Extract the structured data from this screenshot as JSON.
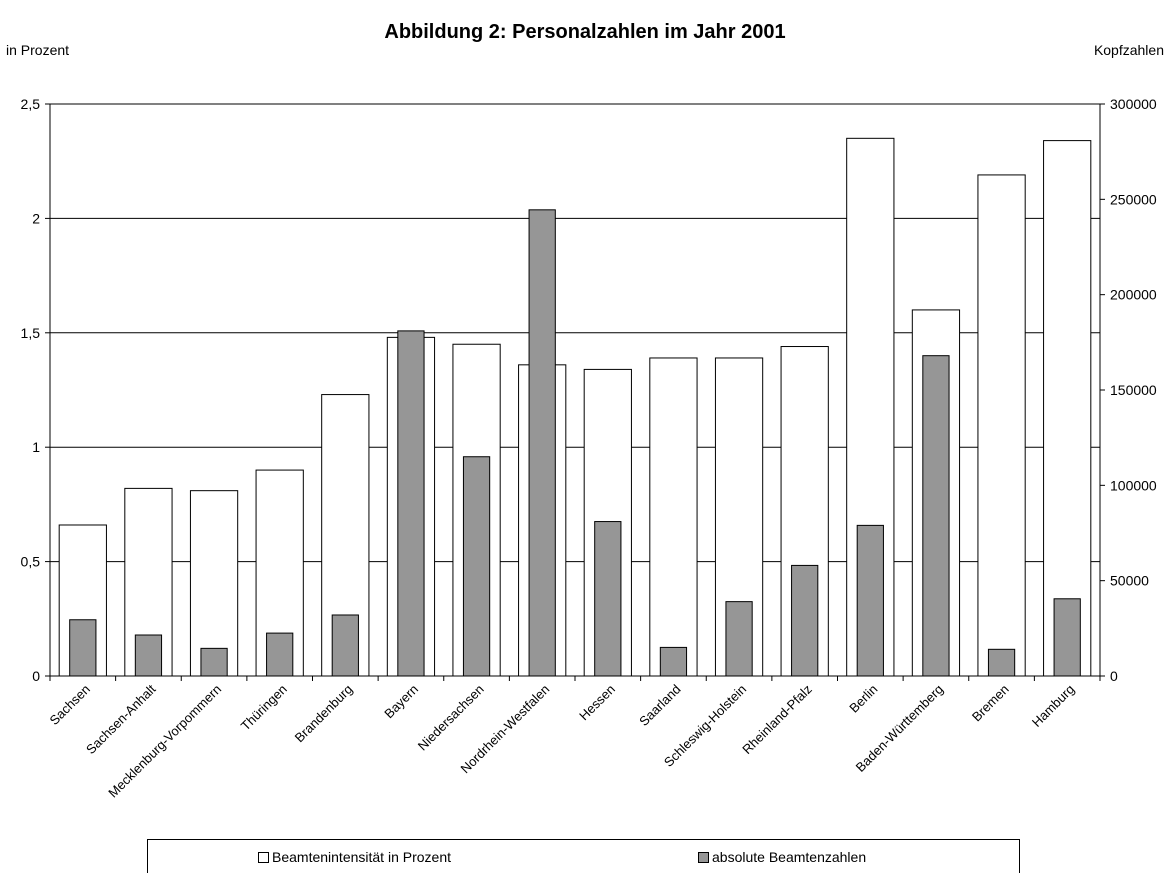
{
  "chart_data": {
    "type": "bar",
    "title": "Abbildung 2: Personalzahlen im Jahr 2001",
    "ylabel": "in Prozent",
    "y2label": "Kopfzahlen",
    "categories": [
      "Sachsen",
      "Sachsen-Anhalt",
      "Mecklenburg-Vorpommern",
      "Thüringen",
      "Brandenburg",
      "Bayern",
      "Niedersachsen",
      "Nordrhein-Westfalen",
      "Hessen",
      "Saarland",
      "Schleswig-Holstein",
      "Rheinland-Pfalz",
      "Berlin",
      "Baden-Württemberg",
      "Bremen",
      "Hamburg"
    ],
    "ylim": [
      0,
      2.5
    ],
    "y2lim": [
      0,
      300000
    ],
    "yticks": [
      "0",
      "0,5",
      "1",
      "1,5",
      "2",
      "2,5"
    ],
    "y2ticks": [
      "0",
      "50000",
      "100000",
      "150000",
      "200000",
      "250000",
      "300000"
    ],
    "grid": true,
    "legend_position": "bottom",
    "series": [
      {
        "name": "Beamtenintensität in Prozent",
        "axis": "left",
        "color": "#ffffff",
        "values": [
          0.66,
          0.82,
          0.81,
          0.9,
          1.23,
          1.48,
          1.45,
          1.36,
          1.34,
          1.39,
          1.39,
          1.44,
          2.35,
          1.6,
          2.19,
          2.34
        ]
      },
      {
        "name": "absolute Beamtenzahlen",
        "axis": "right",
        "color": "#969696",
        "values": [
          29500,
          21500,
          14500,
          22500,
          32000,
          181000,
          115000,
          244500,
          81000,
          15000,
          39000,
          58000,
          79000,
          168000,
          14000,
          40500
        ]
      }
    ]
  }
}
